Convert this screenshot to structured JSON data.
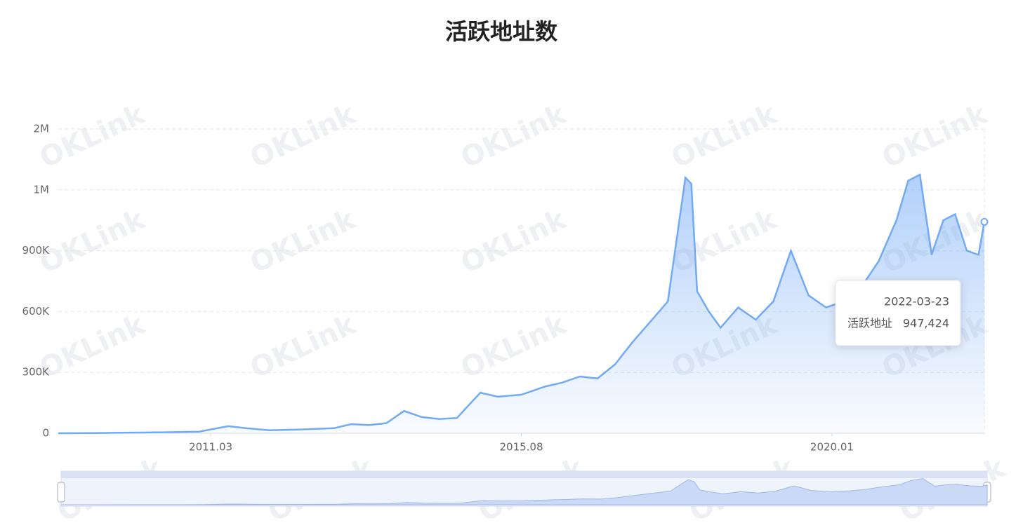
{
  "chart_data": {
    "type": "area",
    "title": "活跃地址数",
    "watermark": "OKLink",
    "x": [
      "2009-01",
      "2009-07",
      "2010-01",
      "2010-07",
      "2011-01",
      "2011-06",
      "2011-09",
      "2012-01",
      "2012-06",
      "2012-12",
      "2013-03",
      "2013-06",
      "2013-09",
      "2013-12",
      "2014-03",
      "2014-06",
      "2014-09",
      "2015-01",
      "2015-04",
      "2015-08",
      "2015-12",
      "2016-03",
      "2016-06",
      "2016-09",
      "2016-12",
      "2017-03",
      "2017-06",
      "2017-09",
      "2017-12",
      "2018-01",
      "2018-02",
      "2018-04",
      "2018-06",
      "2018-09",
      "2018-12",
      "2019-03",
      "2019-06",
      "2019-09",
      "2019-12",
      "2020-03",
      "2020-06",
      "2020-09",
      "2020-12",
      "2021-02",
      "2021-04",
      "2021-06",
      "2021-08",
      "2021-10",
      "2021-12",
      "2022-02",
      "2022-03"
    ],
    "series": [
      {
        "name": "活跃地址",
        "color": "#73aaf6",
        "values": [
          0,
          1000,
          3000,
          5000,
          8000,
          35000,
          25000,
          15000,
          18000,
          25000,
          45000,
          40000,
          50000,
          110000,
          80000,
          70000,
          75000,
          200000,
          180000,
          190000,
          230000,
          250000,
          280000,
          270000,
          340000,
          450000,
          550000,
          650000,
          1200000,
          1100000,
          700000,
          600000,
          520000,
          620000,
          560000,
          650000,
          900000,
          680000,
          620000,
          650000,
          720000,
          850000,
          950000,
          1150000,
          1250000,
          880000,
          950000,
          960000,
          900000,
          880000,
          947424
        ]
      }
    ],
    "xlim": [
      "2009-01",
      "2022-03"
    ],
    "xticks": [
      {
        "value": "2011-03",
        "label": "2011.03"
      },
      {
        "value": "2015-08",
        "label": "2015.08"
      },
      {
        "value": "2020-01",
        "label": "2020.01"
      }
    ],
    "ylim": [
      0,
      2000000
    ],
    "yticks": [
      0,
      {
        "value": 300000,
        "label": "300K"
      },
      {
        "value": 600000,
        "label": "600K"
      },
      {
        "value": 900000,
        "label": "900K"
      },
      {
        "value": 1000000,
        "label": "1M"
      },
      {
        "value": 2000000,
        "label": "2M"
      }
    ],
    "grid": true,
    "tooltip": {
      "date": "2022-03-23",
      "value_label": "947,424"
    }
  }
}
